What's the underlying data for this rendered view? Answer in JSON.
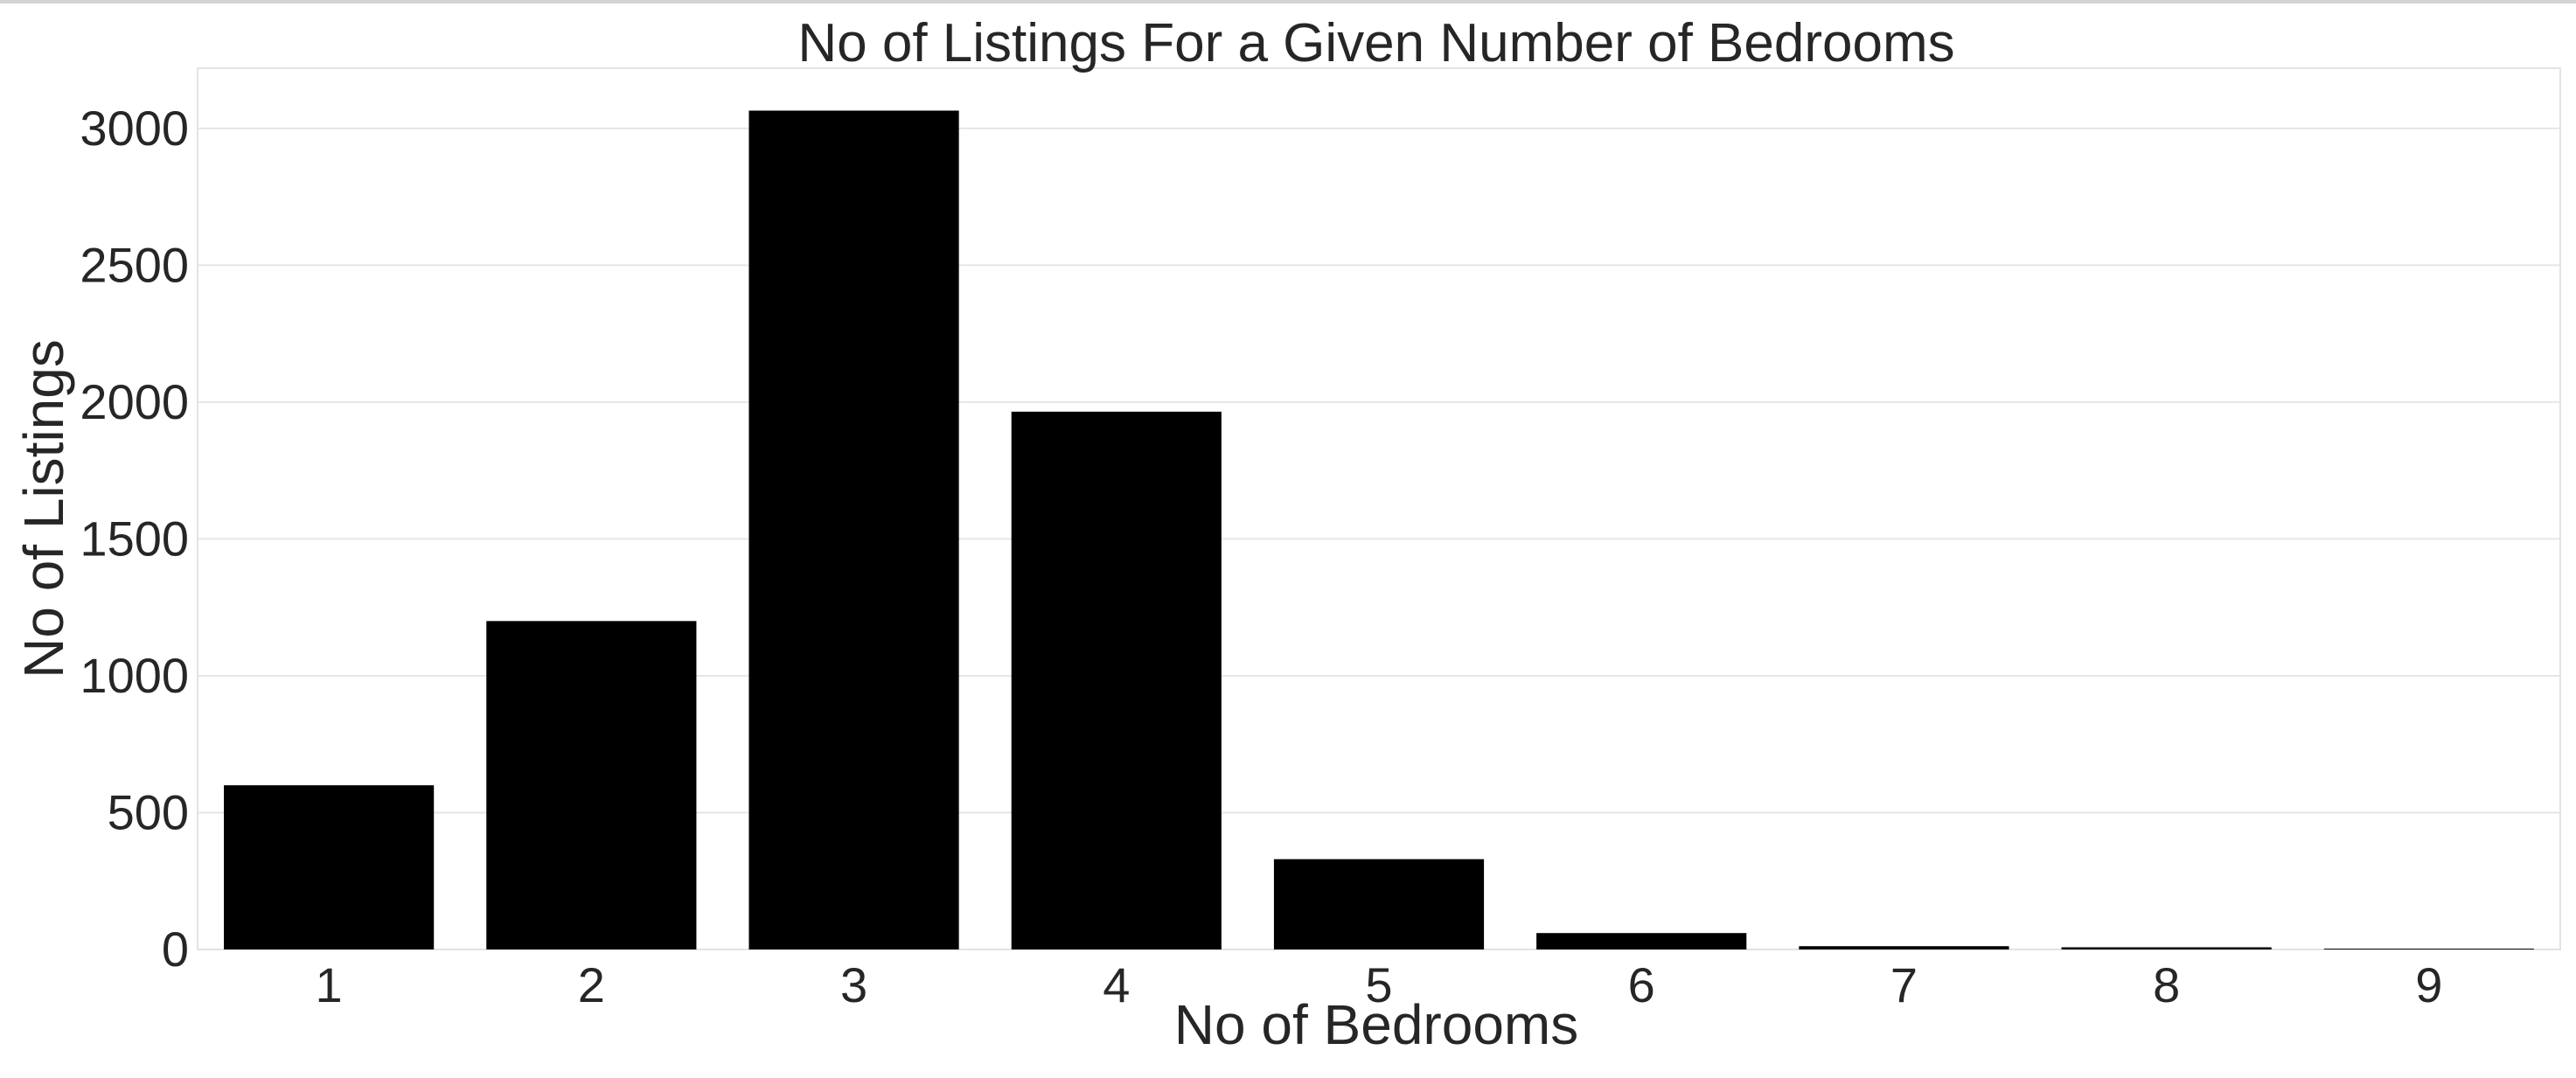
{
  "chart_data": {
    "type": "bar",
    "title": "No of Listings For a Given Number of Bedrooms",
    "xlabel": "No of Bedrooms",
    "ylabel": "No of Listings",
    "categories": [
      "1",
      "2",
      "3",
      "4",
      "5",
      "6",
      "7",
      "8",
      "9"
    ],
    "values": [
      600,
      1200,
      3065,
      1965,
      330,
      60,
      12,
      8,
      3
    ],
    "ylim": [
      0,
      3220
    ],
    "yticks": [
      0,
      500,
      1000,
      1500,
      2000,
      2500,
      3000
    ],
    "grid": true,
    "bar_color": "#000000",
    "legend": "none"
  }
}
